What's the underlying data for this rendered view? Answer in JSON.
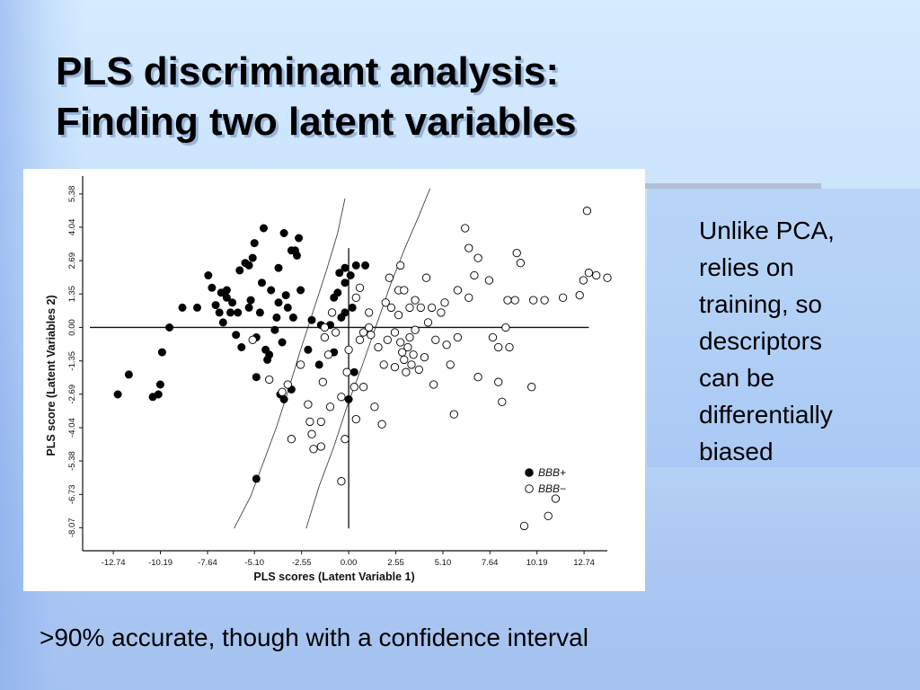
{
  "slide": {
    "title_lines": [
      "PLS discriminant analysis:",
      "Finding two latent variables"
    ],
    "side_text_lines": [
      "Unlike PCA,",
      "relies on",
      "training, so",
      "descriptors",
      "can be",
      "differentially",
      "biased"
    ],
    "bottom_text": ">90% accurate, though with a confidence interval"
  },
  "chart_data": {
    "type": "scatter",
    "xlabel": "PLS scores (Latent Variable 1)",
    "ylabel": "PLS score (Latent Variables 2)",
    "xlim": [
      -14.4,
      14.0
    ],
    "ylim": [
      -9.0,
      6.1
    ],
    "x_ticks": [
      -12.74,
      -10.19,
      -7.64,
      -5.1,
      -2.55,
      0.0,
      2.55,
      5.1,
      7.64,
      10.19,
      12.74
    ],
    "x_tick_labels": [
      "-12.74",
      "-10.19",
      "-7.64",
      "-5.10",
      "-2.55",
      "0.00",
      "2.55",
      "5.10",
      "7.64",
      "10.19",
      "12.74"
    ],
    "y_ticks": [
      5.38,
      4.04,
      2.69,
      1.35,
      0.0,
      -1.35,
      -2.69,
      -4.04,
      -5.38,
      -6.73,
      -8.07
    ],
    "y_tick_labels": [
      "5.38",
      "4.04",
      "2.69",
      "1.35",
      "0.00",
      "-1.35",
      "-2.69",
      "-4.04",
      "-5.38",
      "-6.73",
      "-8.07"
    ],
    "legend": {
      "placement": "bottom-right",
      "entries": [
        "BBB+",
        "BBB−"
      ]
    },
    "series": [
      {
        "name": "BBB+",
        "marker": "filled-circle",
        "color": "#000000",
        "points": [
          [
            -12.5,
            -2.7
          ],
          [
            -11.9,
            -1.9
          ],
          [
            -10.6,
            -2.8
          ],
          [
            -10.3,
            -2.7
          ],
          [
            -10.2,
            -2.3
          ],
          [
            -10.1,
            -1.0
          ],
          [
            -9.7,
            0.0
          ],
          [
            -9.0,
            0.8
          ],
          [
            -8.2,
            0.8
          ],
          [
            -7.6,
            2.1
          ],
          [
            -7.4,
            1.6
          ],
          [
            -7.2,
            0.9
          ],
          [
            -7.0,
            0.6
          ],
          [
            -6.9,
            1.4
          ],
          [
            -6.8,
            0.2
          ],
          [
            -6.6,
            1.2
          ],
          [
            -6.6,
            1.5
          ],
          [
            -6.4,
            0.6
          ],
          [
            -6.3,
            1.0
          ],
          [
            -6.1,
            -0.3
          ],
          [
            -6.0,
            0.6
          ],
          [
            -5.9,
            2.3
          ],
          [
            -5.8,
            -0.8
          ],
          [
            -5.6,
            2.6
          ],
          [
            -5.4,
            2.5
          ],
          [
            -5.4,
            0.8
          ],
          [
            -5.3,
            1.1
          ],
          [
            -5.2,
            2.8
          ],
          [
            -5.1,
            3.4
          ],
          [
            -5.0,
            -2.0
          ],
          [
            -5.0,
            -0.4
          ],
          [
            -5.0,
            -6.1
          ],
          [
            -4.8,
            0.6
          ],
          [
            -4.7,
            1.8
          ],
          [
            -4.6,
            4.0
          ],
          [
            -4.5,
            -0.9
          ],
          [
            -4.4,
            -1.3
          ],
          [
            -4.3,
            -1.1
          ],
          [
            -4.2,
            1.5
          ],
          [
            -4.0,
            -0.1
          ],
          [
            -3.9,
            0.4
          ],
          [
            -3.8,
            2.4
          ],
          [
            -3.8,
            1.0
          ],
          [
            -3.7,
            -2.7
          ],
          [
            -3.6,
            -0.6
          ],
          [
            -3.5,
            3.8
          ],
          [
            -3.5,
            -2.9
          ],
          [
            -3.4,
            1.3
          ],
          [
            -3.3,
            0.8
          ],
          [
            -3.1,
            -2.5
          ],
          [
            -3.1,
            3.1
          ],
          [
            -3.0,
            0.4
          ],
          [
            -2.9,
            3.1
          ],
          [
            -2.8,
            2.9
          ],
          [
            -2.7,
            3.6
          ],
          [
            -2.6,
            1.5
          ],
          [
            -2.2,
            -0.9
          ],
          [
            -2.0,
            0.3
          ],
          [
            -1.6,
            -1.5
          ],
          [
            -1.5,
            0.1
          ],
          [
            -1.0,
            0.1
          ],
          [
            -0.8,
            1.2
          ],
          [
            -0.8,
            -1.0
          ],
          [
            -0.6,
            1.4
          ],
          [
            -0.5,
            2.2
          ],
          [
            -0.4,
            0.4
          ],
          [
            -0.2,
            0.6
          ],
          [
            -0.2,
            1.8
          ],
          [
            -0.2,
            2.4
          ],
          [
            0.0,
            -2.9
          ],
          [
            0.1,
            2.1
          ],
          [
            0.2,
            0.8
          ],
          [
            0.3,
            -1.8
          ],
          [
            0.4,
            2.5
          ],
          [
            0.9,
            2.5
          ]
        ]
      },
      {
        "name": "BBB−",
        "marker": "open-circle",
        "color": "#000000",
        "points": [
          [
            -5.2,
            -0.5
          ],
          [
            -4.3,
            -2.1
          ],
          [
            -3.6,
            -2.6
          ],
          [
            -3.3,
            -2.3
          ],
          [
            -3.1,
            -4.5
          ],
          [
            -2.6,
            -1.5
          ],
          [
            -2.2,
            -3.1
          ],
          [
            -2.1,
            -3.8
          ],
          [
            -2.0,
            -4.3
          ],
          [
            -1.9,
            -4.9
          ],
          [
            -1.5,
            -4.8
          ],
          [
            -1.5,
            -3.8
          ],
          [
            -1.4,
            -2.2
          ],
          [
            -1.3,
            0.0
          ],
          [
            -1.3,
            -0.4
          ],
          [
            -1.1,
            -1.1
          ],
          [
            -1.0,
            -3.2
          ],
          [
            -0.9,
            0.6
          ],
          [
            -0.7,
            -0.2
          ],
          [
            -0.4,
            -6.2
          ],
          [
            -0.4,
            -2.8
          ],
          [
            -0.2,
            -4.5
          ],
          [
            -0.1,
            -1.8
          ],
          [
            0.0,
            -0.9
          ],
          [
            0.3,
            -2.4
          ],
          [
            0.4,
            1.2
          ],
          [
            0.4,
            -3.7
          ],
          [
            0.6,
            -0.5
          ],
          [
            0.6,
            1.6
          ],
          [
            0.8,
            -0.2
          ],
          [
            0.8,
            -2.4
          ],
          [
            1.1,
            0.0
          ],
          [
            1.1,
            0.6
          ],
          [
            1.2,
            -0.3
          ],
          [
            1.4,
            -3.2
          ],
          [
            1.6,
            -0.8
          ],
          [
            1.8,
            -3.9
          ],
          [
            1.9,
            -1.5
          ],
          [
            2.0,
            1.0
          ],
          [
            2.1,
            -0.5
          ],
          [
            2.2,
            2.0
          ],
          [
            2.3,
            0.8
          ],
          [
            2.5,
            -0.2
          ],
          [
            2.5,
            -1.6
          ],
          [
            2.7,
            0.5
          ],
          [
            2.7,
            1.5
          ],
          [
            2.8,
            -0.6
          ],
          [
            2.8,
            2.5
          ],
          [
            2.9,
            -1.0
          ],
          [
            3.0,
            1.5
          ],
          [
            3.0,
            -1.3
          ],
          [
            3.1,
            -1.8
          ],
          [
            3.2,
            -0.8
          ],
          [
            3.3,
            -0.4
          ],
          [
            3.3,
            0.8
          ],
          [
            3.4,
            -1.5
          ],
          [
            3.5,
            -1.1
          ],
          [
            3.6,
            1.1
          ],
          [
            3.6,
            -0.1
          ],
          [
            3.8,
            -1.7
          ],
          [
            3.9,
            0.8
          ],
          [
            4.1,
            -1.2
          ],
          [
            4.2,
            2.0
          ],
          [
            4.3,
            0.2
          ],
          [
            4.5,
            0.8
          ],
          [
            4.6,
            -2.3
          ],
          [
            4.7,
            -0.5
          ],
          [
            5.0,
            0.6
          ],
          [
            5.2,
            1.0
          ],
          [
            5.3,
            -0.7
          ],
          [
            5.5,
            -1.5
          ],
          [
            5.7,
            -3.5
          ],
          [
            5.9,
            -0.4
          ],
          [
            5.9,
            1.5
          ],
          [
            6.3,
            4.0
          ],
          [
            6.5,
            1.2
          ],
          [
            6.5,
            3.2
          ],
          [
            6.8,
            2.1
          ],
          [
            7.0,
            2.8
          ],
          [
            7.0,
            -2.0
          ],
          [
            7.6,
            1.9
          ],
          [
            7.8,
            -0.4
          ],
          [
            8.1,
            -2.2
          ],
          [
            8.1,
            -0.8
          ],
          [
            8.3,
            -3.0
          ],
          [
            8.5,
            0.0
          ],
          [
            8.6,
            1.1
          ],
          [
            8.7,
            -0.8
          ],
          [
            9.0,
            1.1
          ],
          [
            9.1,
            3.0
          ],
          [
            9.3,
            2.6
          ],
          [
            9.5,
            -8.0
          ],
          [
            9.9,
            -2.4
          ],
          [
            10.0,
            1.1
          ],
          [
            10.6,
            1.1
          ],
          [
            10.8,
            -7.6
          ],
          [
            11.6,
            1.2
          ],
          [
            12.5,
            1.3
          ],
          [
            12.7,
            1.9
          ],
          [
            13.0,
            2.2
          ],
          [
            11.2,
            -6.9
          ],
          [
            12.9,
            4.7
          ],
          [
            13.4,
            2.1
          ],
          [
            14.0,
            2.0
          ]
        ]
      }
    ],
    "boundary_curves": [
      {
        "name": "left-confidence-boundary",
        "points": [
          [
            -6.2,
            -8.1
          ],
          [
            -5.3,
            -6.8
          ],
          [
            -4.5,
            -5.2
          ],
          [
            -3.9,
            -4.0
          ],
          [
            -3.3,
            -2.6
          ],
          [
            -2.6,
            -0.9
          ],
          [
            -1.9,
            0.7
          ],
          [
            -1.2,
            2.3
          ],
          [
            -0.6,
            3.8
          ],
          [
            -0.2,
            5.2
          ]
        ]
      },
      {
        "name": "right-confidence-boundary",
        "points": [
          [
            -2.3,
            -8.1
          ],
          [
            -1.6,
            -6.4
          ],
          [
            -0.8,
            -4.8
          ],
          [
            -0.1,
            -3.2
          ],
          [
            0.7,
            -1.6
          ],
          [
            1.5,
            0.1
          ],
          [
            2.3,
            1.8
          ],
          [
            3.1,
            3.3
          ],
          [
            3.8,
            4.5
          ],
          [
            4.4,
            5.6
          ]
        ]
      }
    ],
    "grid": false
  }
}
